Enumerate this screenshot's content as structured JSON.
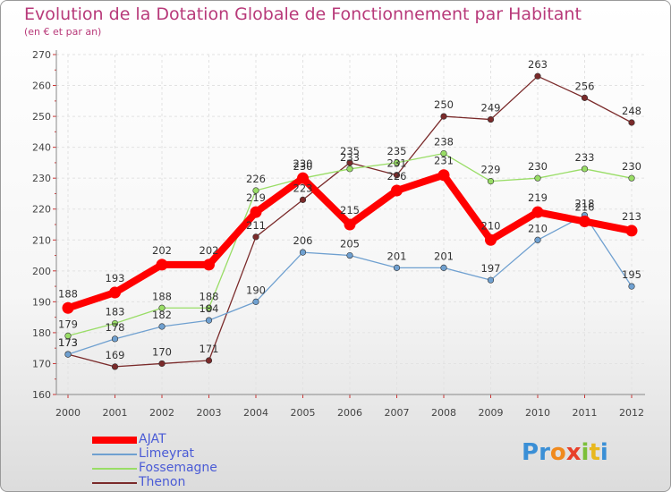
{
  "chart_data": {
    "type": "line",
    "title": "Evolution de la Dotation Globale de Fonctionnement par Habitant",
    "subtitle": "(en € et par an)",
    "xlabel": "",
    "ylabel": "",
    "ylim": [
      160,
      270
    ],
    "yticks": [
      160,
      170,
      180,
      190,
      200,
      210,
      220,
      230,
      240,
      250,
      260,
      270
    ],
    "categories": [
      "2000",
      "2001",
      "2002",
      "2003",
      "2004",
      "2005",
      "2006",
      "2007",
      "2008",
      "2009",
      "2010",
      "2011",
      "2012"
    ],
    "series": [
      {
        "name": "AJAT",
        "color": "#ff0000",
        "values": [
          188,
          193,
          202,
          202,
          219,
          230,
          215,
          226,
          231,
          210,
          219,
          216,
          213
        ]
      },
      {
        "name": "Limeyrat",
        "color": "#6fa0d0",
        "values": [
          173,
          178,
          182,
          184,
          190,
          206,
          205,
          201,
          201,
          197,
          210,
          218,
          195
        ]
      },
      {
        "name": "Fossemagne",
        "color": "#99dd66",
        "values": [
          179,
          183,
          188,
          188,
          226,
          230,
          233,
          235,
          238,
          229,
          230,
          233,
          230
        ]
      },
      {
        "name": "Thenon",
        "color": "#7a2a2a",
        "values": [
          173,
          169,
          170,
          171,
          211,
          223,
          235,
          231,
          250,
          249,
          263,
          256,
          248
        ]
      }
    ],
    "grid": true,
    "legend": "bottom-left"
  },
  "brand": {
    "text": "Proxiti"
  }
}
